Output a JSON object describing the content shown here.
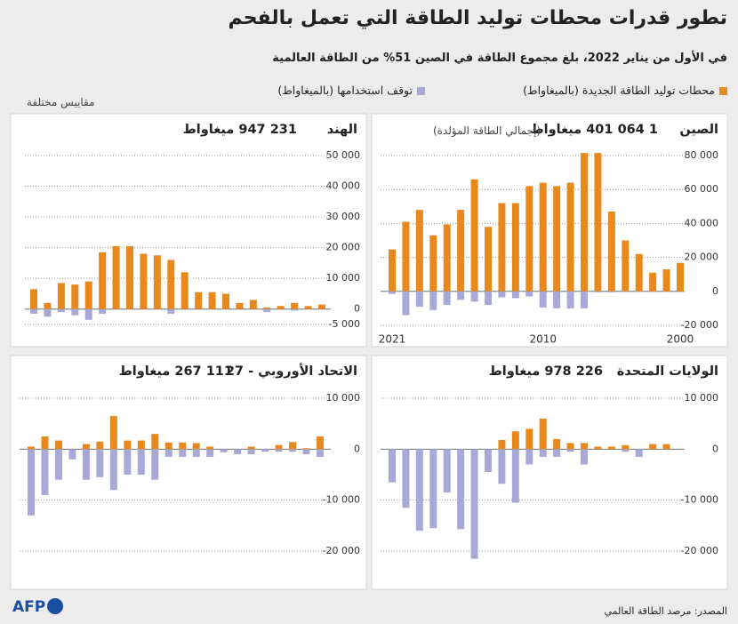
{
  "header": {
    "title": "تطور قدرات محطات توليد الطاقة التي تعمل بالفحم",
    "subtitle": "في الأول من يناير 2022، بلغ مجموع الطاقة في الصين 51% من الطاقة العالمية",
    "note": "مقاييس مختلفة"
  },
  "legend": [
    {
      "name": "محطات توليد الطاقة الجديدة (بالميغاواط)",
      "color": "#e8891e"
    },
    {
      "name": "توقف استخدامها (بالميغاواط)",
      "color": "#a9a9d8"
    }
  ],
  "footer": {
    "source": "المصدر: مرصد الطاقة العالمي",
    "logo": "AFP"
  },
  "chart_data": [
    {
      "type": "bar",
      "title": "الصين",
      "total": "1 064 401 ميغاواط",
      "subtitle": "(إجمالي الطاقة المؤلدة)",
      "categories": [
        "2000",
        null,
        null,
        null,
        null,
        null,
        null,
        null,
        null,
        null,
        "2010",
        null,
        null,
        null,
        null,
        null,
        null,
        null,
        null,
        null,
        null,
        "2021"
      ],
      "ylim": [
        -20000,
        80000
      ],
      "yticks": [
        {
          "value": -20000,
          "label": "-20 000"
        },
        0,
        {
          "value": 20000,
          "label": "20 000"
        },
        {
          "value": 40000,
          "label": "40 000"
        },
        {
          "value": 60000,
          "label": "60 000"
        },
        {
          "value": 80000,
          "label": "80 000"
        }
      ],
      "series": [
        {
          "values": [
            16800,
            13000,
            11000,
            22000,
            30000,
            47000,
            81500,
            81500,
            64000,
            62000,
            64000,
            62000,
            52000,
            52000,
            38000,
            66000,
            48000,
            39500,
            33000,
            48000,
            41000,
            24700
          ]
        },
        {
          "values": [
            0,
            0,
            0,
            -300,
            -300,
            -500,
            -500,
            -10000,
            -10000,
            -10000,
            -9500,
            -3000,
            -4000,
            -3500,
            -8000,
            -6000,
            -5000,
            -8000,
            -11000,
            -9000,
            -14000,
            -1500
          ]
        }
      ]
    },
    {
      "type": "bar",
      "title": "الهند",
      "total": "231 947 ميغاواط",
      "ylim": [
        -5000,
        50000
      ],
      "yticks": [
        {
          "value": -5000,
          "label": "-5 000"
        },
        0,
        {
          "value": 10000,
          "label": "10 000"
        },
        {
          "value": 20000,
          "label": "20 000"
        },
        {
          "value": 30000,
          "label": "30 000"
        },
        {
          "value": 40000,
          "label": "40 000"
        },
        {
          "value": 50000,
          "label": "50 000"
        }
      ],
      "series": [
        {
          "values": [
            1500,
            1000,
            2000,
            1000,
            500,
            3000,
            2000,
            5000,
            5500,
            5500,
            12000,
            16000,
            17500,
            18000,
            20500,
            20500,
            18500,
            9000,
            8000,
            8500,
            2000,
            6500
          ]
        },
        {
          "values": [
            0,
            0,
            -500,
            0,
            -1000,
            0,
            0,
            0,
            0,
            0,
            0,
            -1500,
            0,
            0,
            0,
            0,
            -1500,
            -3500,
            -2000,
            -1000,
            -2500,
            -1500
          ]
        }
      ]
    },
    {
      "type": "bar",
      "title": "الولايات المتحدة",
      "total": "226 978 ميغاواط",
      "ylim": [
        -20000,
        10000
      ],
      "yticks": [
        {
          "value": -20000,
          "label": "-20 000"
        },
        {
          "value": -10000,
          "label": "-10 000"
        },
        0,
        {
          "value": 10000,
          "label": "10 000"
        }
      ],
      "series": [
        {
          "values": [
            0,
            1000,
            1000,
            0,
            800,
            500,
            500,
            1200,
            1200,
            2000,
            6000,
            4000,
            3500,
            1800,
            0,
            0,
            0,
            0,
            0,
            0,
            0,
            0
          ]
        },
        {
          "values": [
            0,
            0,
            0,
            -1500,
            -500,
            0,
            0,
            -3000,
            -500,
            -1500,
            -1500,
            -3000,
            -10500,
            -6800,
            -4500,
            -21500,
            -15700,
            -8500,
            -15500,
            -16000,
            -11500,
            -6500
          ]
        }
      ]
    },
    {
      "type": "bar",
      "title": "الاتحاد الأوروبي - 27",
      "total": "111 267 ميغاواط",
      "ylim": [
        -20000,
        10000
      ],
      "yticks": [
        {
          "value": -20000,
          "label": "-20 000"
        },
        {
          "value": -10000,
          "label": "-10 000"
        },
        0,
        {
          "value": 10000,
          "label": "10 000"
        }
      ],
      "series": [
        {
          "values": [
            2500,
            200,
            1400,
            800,
            0,
            500,
            0,
            0,
            500,
            1200,
            1300,
            1300,
            3000,
            1700,
            1700,
            6500,
            1500,
            1000,
            0,
            1700,
            2500,
            500
          ]
        },
        {
          "values": [
            -1500,
            -1000,
            -500,
            -500,
            -500,
            -1000,
            -1000,
            -600,
            -1500,
            -1500,
            -1500,
            -1500,
            -6000,
            -5000,
            -5000,
            -8000,
            -5500,
            -6000,
            -2000,
            -6000,
            -9000,
            -13000
          ]
        }
      ]
    }
  ]
}
